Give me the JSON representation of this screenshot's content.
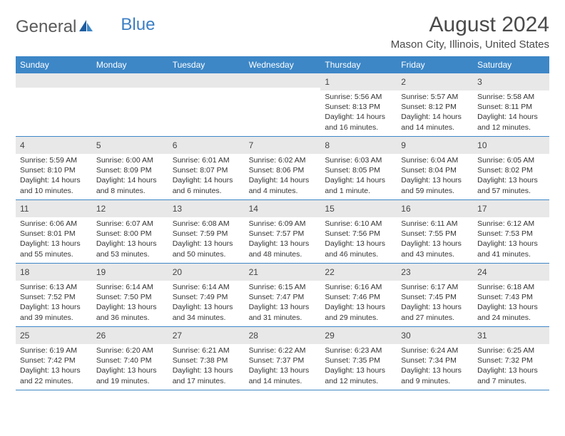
{
  "brand": {
    "name1": "General",
    "name2": "Blue"
  },
  "title": "August 2024",
  "location": "Mason City, Illinois, United States",
  "colors": {
    "header_bg": "#3d87c7",
    "header_text": "#ffffff",
    "daynum_bg": "#e8e8e8",
    "text": "#333333",
    "title_text": "#4a4a4a",
    "logo_gray": "#5a5a5a",
    "logo_blue": "#3b7fc4"
  },
  "dayNames": [
    "Sunday",
    "Monday",
    "Tuesday",
    "Wednesday",
    "Thursday",
    "Friday",
    "Saturday"
  ],
  "weeks": [
    [
      {
        "empty": true
      },
      {
        "empty": true
      },
      {
        "empty": true
      },
      {
        "empty": true
      },
      {
        "day": "1",
        "sunrise": "Sunrise: 5:56 AM",
        "sunset": "Sunset: 8:13 PM",
        "daylight": "Daylight: 14 hours and 16 minutes."
      },
      {
        "day": "2",
        "sunrise": "Sunrise: 5:57 AM",
        "sunset": "Sunset: 8:12 PM",
        "daylight": "Daylight: 14 hours and 14 minutes."
      },
      {
        "day": "3",
        "sunrise": "Sunrise: 5:58 AM",
        "sunset": "Sunset: 8:11 PM",
        "daylight": "Daylight: 14 hours and 12 minutes."
      }
    ],
    [
      {
        "day": "4",
        "sunrise": "Sunrise: 5:59 AM",
        "sunset": "Sunset: 8:10 PM",
        "daylight": "Daylight: 14 hours and 10 minutes."
      },
      {
        "day": "5",
        "sunrise": "Sunrise: 6:00 AM",
        "sunset": "Sunset: 8:09 PM",
        "daylight": "Daylight: 14 hours and 8 minutes."
      },
      {
        "day": "6",
        "sunrise": "Sunrise: 6:01 AM",
        "sunset": "Sunset: 8:07 PM",
        "daylight": "Daylight: 14 hours and 6 minutes."
      },
      {
        "day": "7",
        "sunrise": "Sunrise: 6:02 AM",
        "sunset": "Sunset: 8:06 PM",
        "daylight": "Daylight: 14 hours and 4 minutes."
      },
      {
        "day": "8",
        "sunrise": "Sunrise: 6:03 AM",
        "sunset": "Sunset: 8:05 PM",
        "daylight": "Daylight: 14 hours and 1 minute."
      },
      {
        "day": "9",
        "sunrise": "Sunrise: 6:04 AM",
        "sunset": "Sunset: 8:04 PM",
        "daylight": "Daylight: 13 hours and 59 minutes."
      },
      {
        "day": "10",
        "sunrise": "Sunrise: 6:05 AM",
        "sunset": "Sunset: 8:02 PM",
        "daylight": "Daylight: 13 hours and 57 minutes."
      }
    ],
    [
      {
        "day": "11",
        "sunrise": "Sunrise: 6:06 AM",
        "sunset": "Sunset: 8:01 PM",
        "daylight": "Daylight: 13 hours and 55 minutes."
      },
      {
        "day": "12",
        "sunrise": "Sunrise: 6:07 AM",
        "sunset": "Sunset: 8:00 PM",
        "daylight": "Daylight: 13 hours and 53 minutes."
      },
      {
        "day": "13",
        "sunrise": "Sunrise: 6:08 AM",
        "sunset": "Sunset: 7:59 PM",
        "daylight": "Daylight: 13 hours and 50 minutes."
      },
      {
        "day": "14",
        "sunrise": "Sunrise: 6:09 AM",
        "sunset": "Sunset: 7:57 PM",
        "daylight": "Daylight: 13 hours and 48 minutes."
      },
      {
        "day": "15",
        "sunrise": "Sunrise: 6:10 AM",
        "sunset": "Sunset: 7:56 PM",
        "daylight": "Daylight: 13 hours and 46 minutes."
      },
      {
        "day": "16",
        "sunrise": "Sunrise: 6:11 AM",
        "sunset": "Sunset: 7:55 PM",
        "daylight": "Daylight: 13 hours and 43 minutes."
      },
      {
        "day": "17",
        "sunrise": "Sunrise: 6:12 AM",
        "sunset": "Sunset: 7:53 PM",
        "daylight": "Daylight: 13 hours and 41 minutes."
      }
    ],
    [
      {
        "day": "18",
        "sunrise": "Sunrise: 6:13 AM",
        "sunset": "Sunset: 7:52 PM",
        "daylight": "Daylight: 13 hours and 39 minutes."
      },
      {
        "day": "19",
        "sunrise": "Sunrise: 6:14 AM",
        "sunset": "Sunset: 7:50 PM",
        "daylight": "Daylight: 13 hours and 36 minutes."
      },
      {
        "day": "20",
        "sunrise": "Sunrise: 6:14 AM",
        "sunset": "Sunset: 7:49 PM",
        "daylight": "Daylight: 13 hours and 34 minutes."
      },
      {
        "day": "21",
        "sunrise": "Sunrise: 6:15 AM",
        "sunset": "Sunset: 7:47 PM",
        "daylight": "Daylight: 13 hours and 31 minutes."
      },
      {
        "day": "22",
        "sunrise": "Sunrise: 6:16 AM",
        "sunset": "Sunset: 7:46 PM",
        "daylight": "Daylight: 13 hours and 29 minutes."
      },
      {
        "day": "23",
        "sunrise": "Sunrise: 6:17 AM",
        "sunset": "Sunset: 7:45 PM",
        "daylight": "Daylight: 13 hours and 27 minutes."
      },
      {
        "day": "24",
        "sunrise": "Sunrise: 6:18 AM",
        "sunset": "Sunset: 7:43 PM",
        "daylight": "Daylight: 13 hours and 24 minutes."
      }
    ],
    [
      {
        "day": "25",
        "sunrise": "Sunrise: 6:19 AM",
        "sunset": "Sunset: 7:42 PM",
        "daylight": "Daylight: 13 hours and 22 minutes."
      },
      {
        "day": "26",
        "sunrise": "Sunrise: 6:20 AM",
        "sunset": "Sunset: 7:40 PM",
        "daylight": "Daylight: 13 hours and 19 minutes."
      },
      {
        "day": "27",
        "sunrise": "Sunrise: 6:21 AM",
        "sunset": "Sunset: 7:38 PM",
        "daylight": "Daylight: 13 hours and 17 minutes."
      },
      {
        "day": "28",
        "sunrise": "Sunrise: 6:22 AM",
        "sunset": "Sunset: 7:37 PM",
        "daylight": "Daylight: 13 hours and 14 minutes."
      },
      {
        "day": "29",
        "sunrise": "Sunrise: 6:23 AM",
        "sunset": "Sunset: 7:35 PM",
        "daylight": "Daylight: 13 hours and 12 minutes."
      },
      {
        "day": "30",
        "sunrise": "Sunrise: 6:24 AM",
        "sunset": "Sunset: 7:34 PM",
        "daylight": "Daylight: 13 hours and 9 minutes."
      },
      {
        "day": "31",
        "sunrise": "Sunrise: 6:25 AM",
        "sunset": "Sunset: 7:32 PM",
        "daylight": "Daylight: 13 hours and 7 minutes."
      }
    ]
  ]
}
